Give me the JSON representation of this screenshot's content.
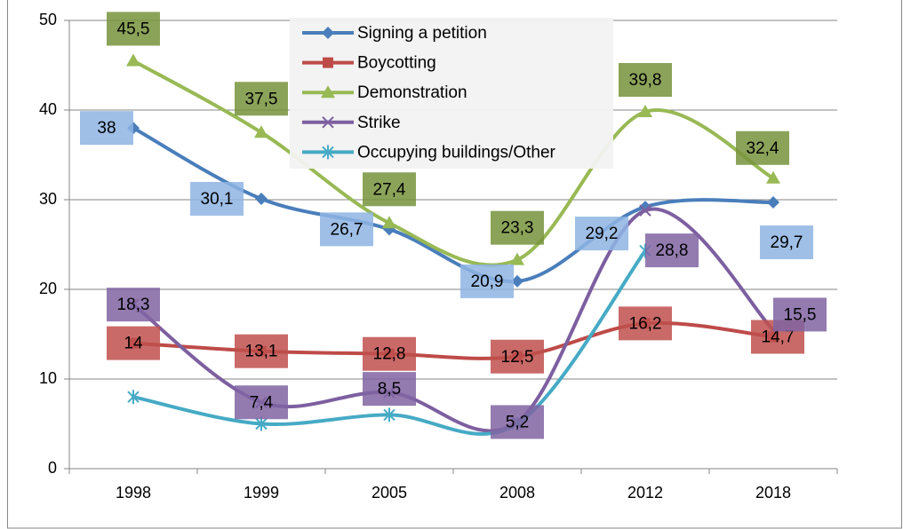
{
  "chart_data": {
    "type": "line",
    "categories": [
      "1998",
      "1999",
      "2005",
      "2008",
      "2012",
      "2018"
    ],
    "series": [
      {
        "name": "Signing a petition",
        "color": "#4a7ebb",
        "label_color": "#8eb4e3",
        "marker": "diamond",
        "values": [
          38,
          30.1,
          26.7,
          20.9,
          29.2,
          29.7
        ],
        "value_labels": [
          "38",
          "30,1",
          "26,7",
          "20,9",
          "29,2",
          "29,7"
        ]
      },
      {
        "name": "Boycotting",
        "color": "#be4b48",
        "label_color": "#c0504d",
        "marker": "square",
        "values": [
          14,
          13.1,
          12.8,
          12.5,
          16.2,
          14.7
        ],
        "value_labels": [
          "14",
          "13,1",
          "12,8",
          "12,5",
          "16,2",
          "14,7"
        ]
      },
      {
        "name": "Demonstration",
        "color": "#98b954",
        "label_color": "#77933c",
        "marker": "triangle",
        "values": [
          45.5,
          37.5,
          27.4,
          23.3,
          39.8,
          32.4
        ],
        "value_labels": [
          "45,5",
          "37,5",
          "27,4",
          "23,3",
          "39,8",
          "32,4"
        ]
      },
      {
        "name": "Strike",
        "color": "#7d5fa0",
        "label_color": "#8064a2",
        "marker": "x",
        "values": [
          18.3,
          7.4,
          8.5,
          5.2,
          28.8,
          15.5
        ],
        "value_labels": [
          "18,3",
          "7,4",
          "8,5",
          "5,2",
          "28,8",
          "15,5"
        ]
      },
      {
        "name": "Occupying buildings/Other",
        "color": "#46aac5",
        "marker": "star",
        "values": [
          8,
          5,
          6,
          5,
          24.3,
          null
        ]
      }
    ],
    "ylim": [
      0,
      50
    ],
    "yticks": [
      0,
      10,
      20,
      30,
      40,
      50
    ],
    "grid": true,
    "legend": "top",
    "smooth": true
  }
}
